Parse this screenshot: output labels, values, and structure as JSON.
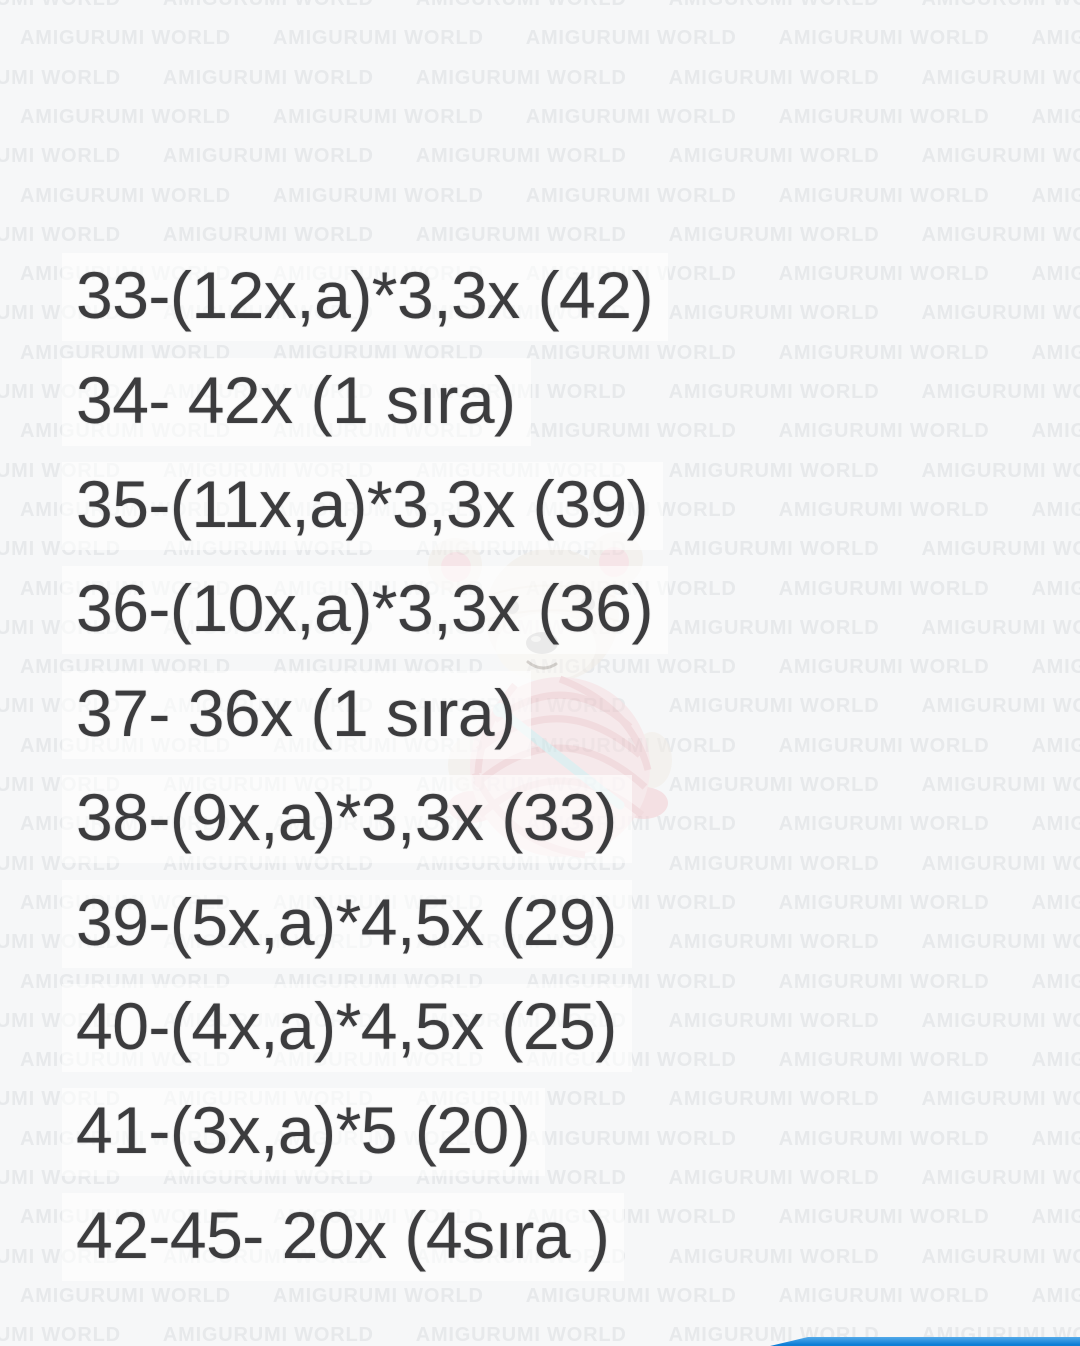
{
  "colors": {
    "bg": "#f6f7f8",
    "watermark": "#e7e9eb",
    "text": "#3c3c3e",
    "band": "rgba(255,255,255,0.62)",
    "bar_top": "#54aae9",
    "bar_bottom": "#0d7ed6"
  },
  "watermark": {
    "text": "AMIGURUMI WORLD"
  },
  "pattern": {
    "lines": [
      "33-(12x,a)*3,3x (42)",
      "34- 42x (1 sıra)",
      "35-(11x,a)*3,3x (39)",
      "36-(10x,a)*3,3x (36)",
      "37- 36x (1 sıra)",
      "38-(9x,a)*3,3x (33)",
      "39-(5x,a)*4,5x (29)",
      "40-(4x,a)*4,5x (25)",
      "41-(3x,a)*5 (20)",
      "42-45- 20x (4sıra )"
    ]
  },
  "mascot": {
    "name": "crochet-bear-with-yarn-ball",
    "body_color": "#f2ede6",
    "body_edge_color": "#e8e0d4",
    "ear_inner_color": "#f6d8db",
    "muzzle_color": "#faf7f2",
    "eye_color": "#b5b2b0",
    "nose_color": "#a5a2a0",
    "nose_highlight_color": "#dbd9d7",
    "smile_color": "#b9b2a9",
    "foot_color": "#f3ced2",
    "yarn_color": "#f7dfe1",
    "yarn_strand_color": "#eec5c9",
    "hook_color": "#cde8ea"
  }
}
